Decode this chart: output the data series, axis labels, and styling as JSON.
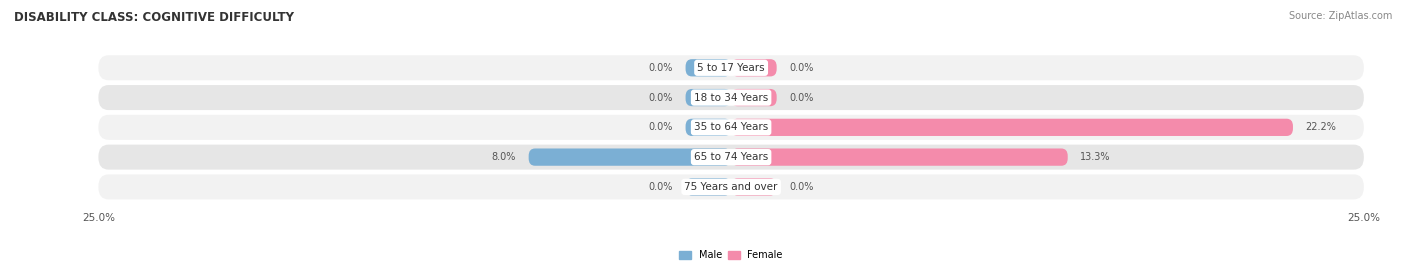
{
  "title": "DISABILITY CLASS: COGNITIVE DIFFICULTY",
  "source": "Source: ZipAtlas.com",
  "categories": [
    "5 to 17 Years",
    "18 to 34 Years",
    "35 to 64 Years",
    "65 to 74 Years",
    "75 Years and over"
  ],
  "male_values": [
    0.0,
    0.0,
    0.0,
    8.0,
    0.0
  ],
  "female_values": [
    0.0,
    0.0,
    22.2,
    13.3,
    0.0
  ],
  "male_color": "#7bafd4",
  "female_color": "#f48bab",
  "row_bg_light": "#f2f2f2",
  "row_bg_dark": "#e6e6e6",
  "max_value": 25.0,
  "stub_size": 1.8,
  "title_fontsize": 8.5,
  "label_fontsize": 7.0,
  "cat_fontsize": 7.5,
  "tick_fontsize": 7.5,
  "source_fontsize": 7.0
}
